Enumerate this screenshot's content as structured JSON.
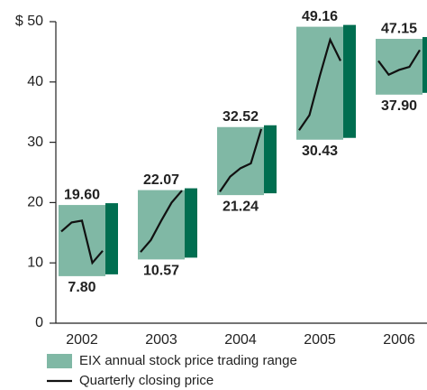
{
  "chart_data": {
    "type": "range_bar",
    "categories": [
      "2002",
      "2003",
      "2004",
      "2005",
      "2006"
    ],
    "series": [
      {
        "name": "EIX annual stock price trading range",
        "color": "#80b8a5",
        "side_color": "#006e50",
        "high": [
          19.6,
          22.07,
          32.52,
          49.16,
          47.15
        ],
        "high_labels": [
          "19.60",
          "22.07",
          "32.52",
          "49.16",
          "47.15"
        ],
        "low": [
          7.8,
          10.57,
          21.24,
          30.43,
          37.9
        ],
        "low_labels": [
          "7.80",
          "10.57",
          "21.24",
          "30.43",
          "37.90"
        ]
      },
      {
        "name": "Quarterly closing price",
        "color": "#111111",
        "values": [
          [
            15.2,
            16.7,
            17,
            10,
            12
          ],
          [
            11.8,
            13.8,
            17,
            20,
            22
          ],
          [
            21.8,
            24.3,
            25.7,
            26.5,
            32.2
          ],
          [
            32,
            34.5,
            41,
            47,
            43.5
          ],
          [
            43.5,
            41.2,
            42,
            42.5,
            45.3
          ]
        ]
      }
    ],
    "ylim": [
      0,
      50
    ],
    "yticks": [
      0,
      10,
      20,
      30,
      40,
      {
        "value": 50,
        "label": "$ 50"
      }
    ]
  }
}
